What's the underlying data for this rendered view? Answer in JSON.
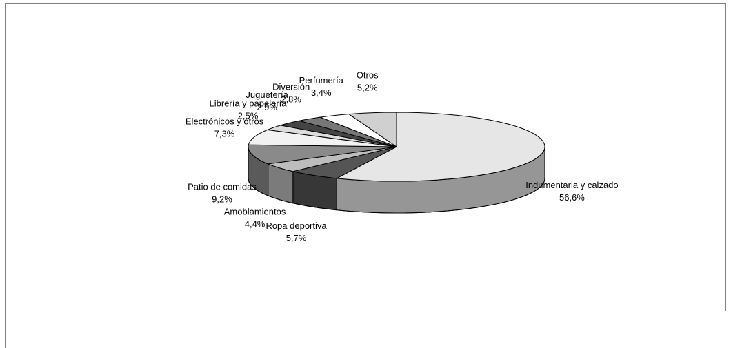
{
  "chart_data": {
    "type": "pie",
    "categories": [
      "Indumentaria y calzado",
      "Ropa deportiva",
      "Amoblamientos",
      "Patio de comidas",
      "Electrónicos y otros",
      "Librería y papelería",
      "Juguetería",
      "Diversión",
      "Perfumería",
      "Otros"
    ],
    "values": [
      56.6,
      5.7,
      4.4,
      9.2,
      7.3,
      2.5,
      2.9,
      2.8,
      3.4,
      5.2
    ],
    "value_labels": [
      "56,6%",
      "5,7%",
      "4,4%",
      "9,2%",
      "7,3%",
      "2,5%",
      "2,9%",
      "2,8%",
      "3,4%",
      "5,2%"
    ],
    "colors": [
      "#e6e6e6",
      "#555555",
      "#bdbdbd",
      "#8a8a8a",
      "#f2f2f2",
      "#dcdcdc",
      "#444444",
      "#777777",
      "#ffffff",
      "#d0d0d0"
    ]
  }
}
